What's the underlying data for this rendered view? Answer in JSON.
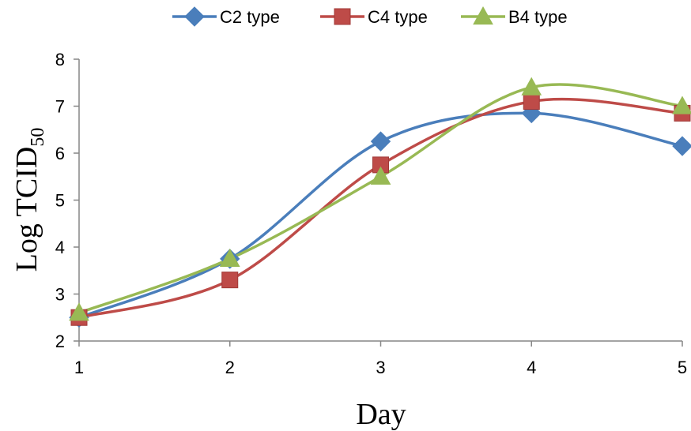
{
  "chart_data": {
    "type": "line",
    "xlabel": "Day",
    "ylabel": "Log TCID",
    "ylabel_sub": "50",
    "x": [
      1,
      2,
      3,
      4,
      5
    ],
    "xticks": [
      "1",
      "2",
      "3",
      "4",
      "5"
    ],
    "yticks": [
      "2",
      "3",
      "4",
      "5",
      "6",
      "7",
      "8"
    ],
    "ylim": [
      2,
      8
    ],
    "xlim": [
      1,
      5
    ],
    "grid": false,
    "smooth": true,
    "legend_position": "top",
    "series": [
      {
        "name": "C2 type",
        "color": "#4a7ebb",
        "marker": "diamond",
        "values": [
          2.5,
          3.75,
          6.25,
          6.85,
          6.15
        ]
      },
      {
        "name": "C4 type",
        "color": "#be4b48",
        "marker": "square",
        "values": [
          2.5,
          3.3,
          5.75,
          7.1,
          6.85
        ]
      },
      {
        "name": "B4 type",
        "color": "#98b954",
        "marker": "triangle",
        "values": [
          2.6,
          3.75,
          5.5,
          7.4,
          7.0
        ]
      }
    ]
  }
}
